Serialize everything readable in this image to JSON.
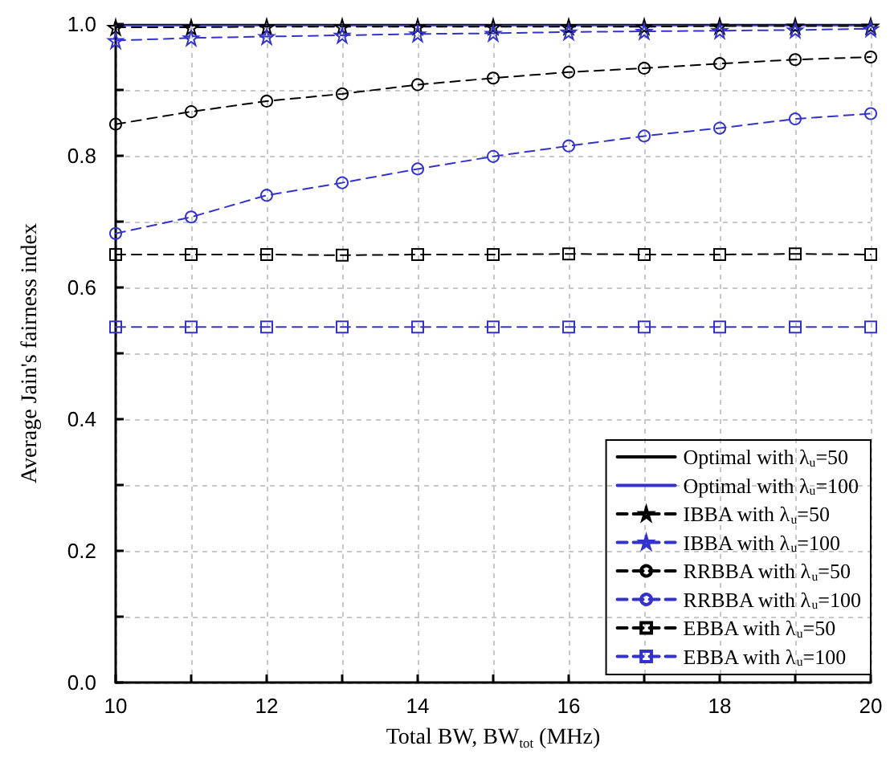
{
  "chart_data": {
    "type": "line",
    "xlabel": "Total BW, BW$_{tot}$ (MHz)",
    "ylabel": "Average Jain's fairness index",
    "x": [
      10,
      11,
      12,
      13,
      14,
      15,
      16,
      17,
      18,
      19,
      20
    ],
    "xlim": [
      10,
      20
    ],
    "xticks": [
      10,
      {
        "value": 11,
        "label": null
      },
      12,
      {
        "value": 13,
        "label": null
      },
      14,
      {
        "value": 15,
        "label": null
      },
      16,
      {
        "value": 17,
        "label": null
      },
      18,
      {
        "value": 19,
        "label": null
      },
      20
    ],
    "ylim": [
      0,
      1
    ],
    "yticks": [
      {
        "value": 0,
        "label": "0.0"
      },
      {
        "value": 0.1,
        "label": null
      },
      0.2,
      {
        "value": 0.3,
        "label": null
      },
      0.4,
      {
        "value": 0.5,
        "label": null
      },
      0.6,
      {
        "value": 0.7,
        "label": null
      },
      0.8,
      {
        "value": 0.9,
        "label": null
      },
      {
        "value": 1,
        "label": "1.0"
      }
    ],
    "grid": true,
    "legend": "bottom right",
    "series": [
      {
        "name": "Optimal with λ$_{u}$=50",
        "color": "#000000",
        "marker": "none",
        "line_style": "solid",
        "values": [
          0.999,
          0.999,
          0.999,
          0.999,
          0.999,
          0.999,
          0.999,
          0.999,
          0.999,
          0.999,
          0.999
        ]
      },
      {
        "name": "Optimal with λ$_{u}$=100",
        "color": "#3333cc",
        "marker": "none",
        "line_style": "solid",
        "values": [
          0.998,
          0.998,
          0.998,
          0.998,
          0.998,
          0.998,
          0.998,
          0.998,
          0.998,
          0.998,
          0.998
        ]
      },
      {
        "name": "IBBA with λ$_{u}$=50",
        "color": "#000000",
        "marker": "star",
        "line_style": "dashed",
        "values": [
          0.995,
          0.995,
          0.996,
          0.996,
          0.996,
          0.996,
          0.996,
          0.996,
          0.997,
          0.997,
          0.997
        ]
      },
      {
        "name": "IBBA with λ$_{u}$=100",
        "color": "#3333cc",
        "marker": "star",
        "line_style": "dashed",
        "values": [
          0.975,
          0.979,
          0.981,
          0.983,
          0.985,
          0.986,
          0.988,
          0.989,
          0.99,
          0.991,
          0.993
        ]
      },
      {
        "name": "RRBBA with λ$_{u}$=50",
        "color": "#000000",
        "marker": "circle",
        "line_style": "dashed",
        "values": [
          0.848,
          0.867,
          0.883,
          0.894,
          0.908,
          0.918,
          0.927,
          0.933,
          0.94,
          0.946,
          0.95
        ]
      },
      {
        "name": "RRBBA with λ$_{u}$=100",
        "color": "#3333cc",
        "marker": "circle",
        "line_style": "dashed",
        "values": [
          0.682,
          0.707,
          0.74,
          0.759,
          0.78,
          0.799,
          0.815,
          0.83,
          0.842,
          0.856,
          0.864
        ]
      },
      {
        "name": "EBBA with λ$_{u}$=50",
        "color": "#000000",
        "marker": "square",
        "line_style": "dashed",
        "values": [
          0.65,
          0.65,
          0.65,
          0.649,
          0.65,
          0.65,
          0.651,
          0.65,
          0.65,
          0.651,
          0.65
        ]
      },
      {
        "name": "EBBA with λ$_{u}$=100",
        "color": "#3333cc",
        "marker": "square",
        "line_style": "dashed",
        "values": [
          0.54,
          0.54,
          0.54,
          0.54,
          0.54,
          0.54,
          0.54,
          0.54,
          0.54,
          0.54,
          0.54
        ]
      }
    ]
  }
}
